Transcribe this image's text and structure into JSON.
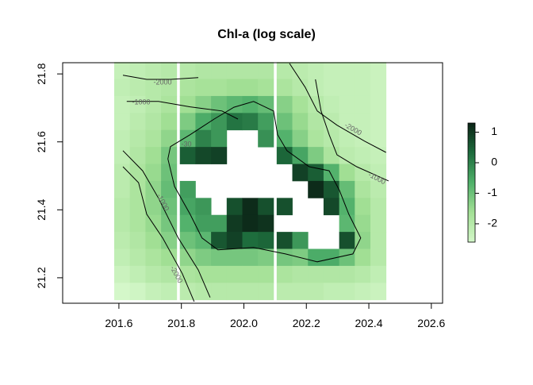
{
  "chart_data": {
    "type": "heatmap",
    "title": "Chl-a (log scale)",
    "x": [
      201.61,
      201.66,
      201.71,
      201.76,
      201.82,
      201.87,
      201.92,
      201.97,
      202.02,
      202.07,
      202.13,
      202.18,
      202.23,
      202.28,
      202.33,
      202.38,
      202.43
    ],
    "y": [
      21.81,
      21.76,
      21.71,
      21.66,
      21.61,
      21.56,
      21.51,
      21.46,
      21.41,
      21.36,
      21.31,
      21.26,
      21.21,
      21.16
    ],
    "z": [
      [
        -2.3,
        -2.2,
        -2.1,
        -2.0,
        -2.0,
        -1.9,
        -1.9,
        -1.9,
        -1.9,
        -1.9,
        -2.0,
        -2.1,
        -2.2,
        -2.3,
        -2.3,
        -2.3,
        -2.4
      ],
      [
        -2.2,
        -2.1,
        -2.0,
        -1.9,
        -1.8,
        -1.7,
        -1.7,
        -1.6,
        -1.6,
        -1.7,
        -1.8,
        -2.0,
        -2.2,
        -2.3,
        -2.3,
        -2.3,
        -2.4
      ],
      [
        -2.3,
        -2.2,
        -2.0,
        -1.8,
        -1.6,
        -1.3,
        -1.0,
        -0.8,
        -0.7,
        -0.9,
        -1.3,
        -1.7,
        -2.0,
        -2.2,
        -2.3,
        -2.3,
        -2.4
      ],
      [
        -2.3,
        -2.1,
        -1.9,
        -1.6,
        -1.2,
        -0.6,
        -0.3,
        0.2,
        0.1,
        -0.4,
        -1.0,
        -1.5,
        -1.9,
        -2.1,
        -2.3,
        -2.3,
        -2.4
      ],
      [
        -2.2,
        -2.0,
        -1.8,
        -1.4,
        -0.8,
        0.0,
        -0.3,
        null,
        null,
        -0.2,
        -0.7,
        -1.3,
        -1.8,
        -2.0,
        -2.2,
        -2.3,
        -2.4
      ],
      [
        -2.2,
        -1.9,
        -1.6,
        -1.1,
        0.5,
        0.8,
        0.9,
        null,
        null,
        null,
        0.4,
        -0.5,
        -1.2,
        -1.8,
        -2.1,
        -2.2,
        -2.3
      ],
      [
        -2.1,
        -1.8,
        -1.5,
        -1.0,
        null,
        null,
        null,
        null,
        null,
        null,
        null,
        0.9,
        0.5,
        -0.7,
        -1.6,
        -2.0,
        -2.2
      ],
      [
        -2.1,
        -1.8,
        -1.4,
        -0.9,
        -0.4,
        null,
        null,
        null,
        null,
        null,
        null,
        null,
        1.2,
        0.6,
        -0.9,
        -1.8,
        -2.1
      ],
      [
        -2.0,
        -1.8,
        -1.4,
        -1.0,
        -0.5,
        -0.3,
        null,
        0.7,
        1.2,
        0.7,
        0.7,
        null,
        null,
        0.8,
        -0.7,
        -1.6,
        -2.0
      ],
      [
        -2.0,
        -1.8,
        -1.5,
        -1.1,
        -0.7,
        -0.4,
        -0.4,
        1.0,
        1.2,
        1.1,
        null,
        null,
        null,
        null,
        -0.8,
        -1.5,
        -2.0
      ],
      [
        -2.1,
        -1.9,
        -1.6,
        -1.3,
        -1.0,
        -0.8,
        0.6,
        0.9,
        0.3,
        0.4,
        0.7,
        -0.3,
        null,
        null,
        0.7,
        -1.4,
        -2.0
      ],
      [
        -2.2,
        -2.0,
        -1.8,
        -1.6,
        -1.4,
        -1.2,
        -1.1,
        -1.1,
        -1.1,
        -1.2,
        -1.1,
        -1.2,
        -0.6,
        -0.6,
        -1.0,
        -1.6,
        -2.0
      ],
      [
        -2.4,
        -2.2,
        -2.0,
        -1.9,
        -1.8,
        -1.7,
        -1.7,
        -1.7,
        -1.7,
        -1.7,
        -1.8,
        -1.9,
        -1.9,
        -1.9,
        -1.9,
        -2.0,
        -2.2
      ],
      [
        -2.6,
        -2.5,
        -2.3,
        -2.2,
        -2.1,
        -2.0,
        -2.0,
        -2.0,
        -2.0,
        -2.0,
        -2.1,
        -2.1,
        -2.1,
        -2.2,
        -2.2,
        -2.3,
        -2.4
      ]
    ],
    "colors": [
      "#d4f7c9",
      "#a3e095",
      "#4fb06a",
      "#1d6b3c",
      "#0b2416"
    ],
    "zlim": [
      -2.6,
      1.3
    ],
    "zticks": [
      1,
      0,
      -1,
      -2
    ],
    "xlim": [
      201.42,
      202.636
    ],
    "ylim": [
      21.125,
      21.833
    ],
    "xticks": [
      201.6,
      201.8,
      {
        "value": 202.0,
        "label": "202.0"
      },
      202.2,
      202.4,
      202.6
    ],
    "yticks": [
      21.2,
      21.4,
      21.6,
      21.8
    ],
    "contours": [
      {
        "label": "-30",
        "x": [
          201.765,
          201.828,
          201.905,
          201.968,
          202.031,
          202.095,
          202.108,
          202.138,
          202.209,
          202.273,
          202.306,
          202.336,
          202.374,
          202.349,
          202.235,
          202.133,
          202.031,
          201.917,
          201.866,
          201.828,
          201.778,
          201.757
        ],
        "y": [
          21.586,
          21.621,
          21.667,
          21.702,
          21.719,
          21.691,
          21.621,
          21.574,
          21.527,
          21.515,
          21.457,
          21.387,
          21.317,
          21.27,
          21.247,
          21.27,
          21.289,
          21.282,
          21.317,
          21.387,
          21.469,
          21.55
        ]
      },
      {
        "label": "-1000",
        "x": [
          201.613,
          201.676,
          201.727,
          201.79,
          201.854,
          201.892
        ],
        "y": [
          21.574,
          21.515,
          21.434,
          21.317,
          21.223,
          21.142
        ]
      },
      {
        "label": "-2000",
        "x": [
          201.613,
          201.663,
          201.689,
          201.74,
          201.803,
          201.841
        ],
        "y": [
          21.527,
          21.48,
          21.387,
          21.317,
          21.212,
          21.13
        ]
      },
      {
        "label": "-1000",
        "x": [
          201.625,
          201.727,
          201.828,
          201.93,
          201.981
        ],
        "y": [
          21.719,
          21.719,
          21.703,
          21.691,
          21.667
        ]
      },
      {
        "label": "-2000",
        "x": [
          201.613,
          201.689,
          201.765,
          201.854
        ],
        "y": [
          21.796,
          21.784,
          21.784,
          21.789
        ]
      },
      {
        "label": "-2000",
        "x": [
          202.146,
          202.196,
          202.235,
          202.298,
          202.387,
          202.455
        ],
        "y": [
          21.831,
          21.761,
          21.691,
          21.649,
          21.602,
          21.569
        ]
      },
      {
        "label": "-1000",
        "x": [
          202.229,
          202.247,
          202.273,
          202.298,
          202.361,
          202.463
        ],
        "y": [
          21.784,
          21.691,
          21.621,
          21.562,
          21.527,
          21.485
        ]
      }
    ]
  }
}
